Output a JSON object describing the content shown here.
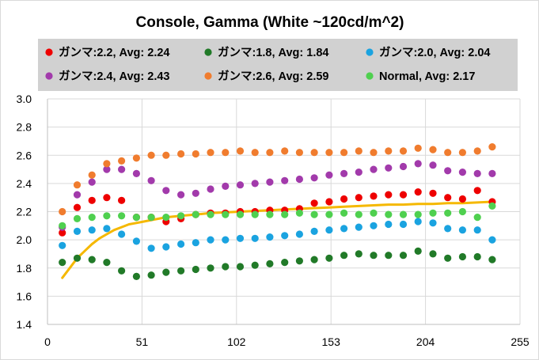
{
  "chart_data": {
    "type": "scatter",
    "title": "Console, Gamma (White ~120cd/m^2)",
    "xlim": [
      0,
      255
    ],
    "ylim": [
      1.4,
      3.0
    ],
    "xticks": [
      0,
      51,
      102,
      153,
      204,
      255
    ],
    "yticks": [
      "1.4",
      "1.6",
      "1.8",
      "2.0",
      "2.2",
      "2.4",
      "2.6",
      "2.8",
      "3.0"
    ],
    "grid": true,
    "legend_position": "top",
    "x": [
      8,
      16,
      24,
      32,
      40,
      48,
      56,
      64,
      72,
      80,
      88,
      96,
      104,
      112,
      120,
      128,
      136,
      144,
      152,
      160,
      168,
      176,
      184,
      192,
      200,
      208,
      216,
      224,
      232,
      240
    ],
    "series": [
      {
        "name": "ガンマ:2.2, Avg: 2.24",
        "color": "#ee0000",
        "values": [
          2.05,
          2.23,
          2.28,
          2.3,
          2.28,
          2.16,
          2.16,
          2.13,
          2.15,
          2.18,
          2.19,
          2.19,
          2.2,
          2.2,
          2.21,
          2.21,
          2.22,
          2.26,
          2.27,
          2.29,
          2.3,
          2.31,
          2.32,
          2.32,
          2.34,
          2.33,
          2.3,
          2.29,
          2.35,
          2.27
        ]
      },
      {
        "name": "ガンマ:1.8, Avg: 1.84",
        "color": "#217a28",
        "values": [
          1.84,
          1.87,
          1.86,
          1.84,
          1.78,
          1.74,
          1.75,
          1.77,
          1.78,
          1.79,
          1.8,
          1.81,
          1.81,
          1.82,
          1.83,
          1.84,
          1.85,
          1.86,
          1.87,
          1.89,
          1.9,
          1.89,
          1.89,
          1.89,
          1.92,
          1.9,
          1.87,
          1.88,
          1.88,
          1.86
        ]
      },
      {
        "name": "ガンマ:2.0, Avg: 2.04",
        "color": "#1aa3e0",
        "values": [
          1.96,
          2.06,
          2.07,
          2.08,
          2.04,
          1.99,
          1.94,
          1.95,
          1.97,
          1.98,
          2.0,
          2.0,
          2.01,
          2.01,
          2.02,
          2.03,
          2.04,
          2.06,
          2.07,
          2.08,
          2.09,
          2.1,
          2.11,
          2.11,
          2.13,
          2.12,
          2.08,
          2.07,
          2.07,
          2.0
        ]
      },
      {
        "name": "ガンマ:2.4, Avg: 2.43",
        "color": "#a23aab",
        "values": [
          2.09,
          2.32,
          2.41,
          2.5,
          2.5,
          2.47,
          2.42,
          2.35,
          2.32,
          2.33,
          2.36,
          2.38,
          2.39,
          2.4,
          2.41,
          2.42,
          2.43,
          2.44,
          2.46,
          2.47,
          2.48,
          2.5,
          2.51,
          2.52,
          2.54,
          2.53,
          2.49,
          2.48,
          2.47,
          2.47
        ]
      },
      {
        "name": "ガンマ:2.6, Avg: 2.59",
        "color": "#f07c2e",
        "values": [
          2.2,
          2.39,
          2.46,
          2.54,
          2.56,
          2.58,
          2.6,
          2.6,
          2.61,
          2.61,
          2.62,
          2.62,
          2.63,
          2.62,
          2.62,
          2.63,
          2.62,
          2.62,
          2.62,
          2.62,
          2.63,
          2.62,
          2.63,
          2.63,
          2.65,
          2.64,
          2.62,
          2.62,
          2.63,
          2.66
        ]
      },
      {
        "name": "Normal, Avg: 2.17",
        "color": "#4fd04f",
        "values": [
          2.1,
          2.15,
          2.16,
          2.17,
          2.17,
          2.16,
          2.16,
          2.16,
          2.17,
          2.18,
          2.18,
          2.18,
          2.18,
          2.18,
          2.18,
          2.18,
          2.19,
          2.18,
          2.18,
          2.19,
          2.18,
          2.19,
          2.18,
          2.18,
          2.18,
          2.19,
          2.19,
          2.2,
          2.16,
          2.24
        ]
      }
    ],
    "trend_line": {
      "color": "#f5b800",
      "x": [
        8,
        12,
        16,
        20,
        24,
        28,
        32,
        36,
        40,
        44,
        48,
        52,
        56,
        60,
        64,
        72,
        80,
        88,
        96,
        104,
        112,
        120,
        128,
        136,
        144,
        152,
        160,
        168,
        176,
        184,
        192,
        200,
        208,
        216,
        224,
        232,
        240
      ],
      "values": [
        1.73,
        1.8,
        1.87,
        1.92,
        1.97,
        2.01,
        2.04,
        2.07,
        2.09,
        2.11,
        2.12,
        2.13,
        2.14,
        2.15,
        2.16,
        2.17,
        2.18,
        2.19,
        2.195,
        2.2,
        2.205,
        2.21,
        2.215,
        2.22,
        2.225,
        2.23,
        2.235,
        2.24,
        2.245,
        2.25,
        2.25,
        2.255,
        2.255,
        2.26,
        2.26,
        2.265,
        2.27
      ]
    }
  }
}
